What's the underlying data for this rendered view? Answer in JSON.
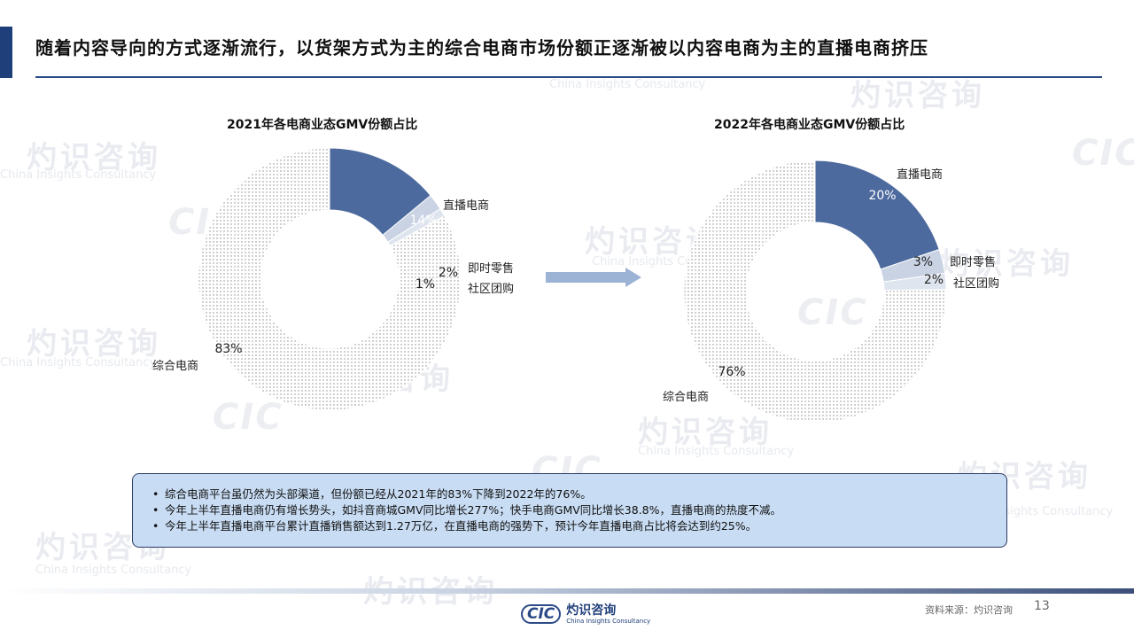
{
  "header": {
    "title": "随着内容导向的方式逐渐流行，以货架方式为主的综合电商市场份额正逐渐被以内容电商为主的直播电商挤压"
  },
  "watermark": {
    "zh": "灼识咨询",
    "en": "China Insights Consultancy",
    "cic": "CIC"
  },
  "colors": {
    "live": "#4d6a9e",
    "instant": "#c9d3e4",
    "group": "#dfe5ef",
    "general_dots": "#8a8a8a",
    "accent": "#1f3f7a",
    "note_bg": "#c8dcf3"
  },
  "chart_data": [
    {
      "type": "pie",
      "style": "donut",
      "title": "2021年各电商业态GMV份额占比",
      "slices": [
        {
          "name": "直播电商",
          "value": 14,
          "label": "14%"
        },
        {
          "name": "即时零售",
          "value": 2,
          "label": "2%"
        },
        {
          "name": "社区团购",
          "value": 1,
          "label": "1%"
        },
        {
          "name": "综合电商",
          "value": 83,
          "label": "83%"
        }
      ]
    },
    {
      "type": "pie",
      "style": "donut",
      "title": "2022年各电商业态GMV份额占比",
      "slices": [
        {
          "name": "直播电商",
          "value": 20,
          "label": "20%"
        },
        {
          "name": "即时零售",
          "value": 3,
          "label": "3%"
        },
        {
          "name": "社区团购",
          "value": 2,
          "label": "2%"
        },
        {
          "name": "综合电商",
          "value": 76,
          "label": "76%"
        }
      ]
    }
  ],
  "notes": [
    "综合电商平台虽仍然为头部渠道，但份额已经从2021年的83%下降到2022年的76%。",
    "今年上半年直播电商仍有增长势头，如抖音商城GMV同比增长277%；快手电商GMV同比增长38.8%，直播电商的热度不减。",
    "今年上半年直播电商平台累计直播销售额达到1.27万亿，在直播电商的强势下，预计今年直播电商占比将会达到约25%。"
  ],
  "footer": {
    "logo_cic": "CIC",
    "logo_zh": "灼识咨询",
    "logo_en": "China Insights Consultancy",
    "source": "资料来源：灼识咨询",
    "page_number": "13"
  }
}
